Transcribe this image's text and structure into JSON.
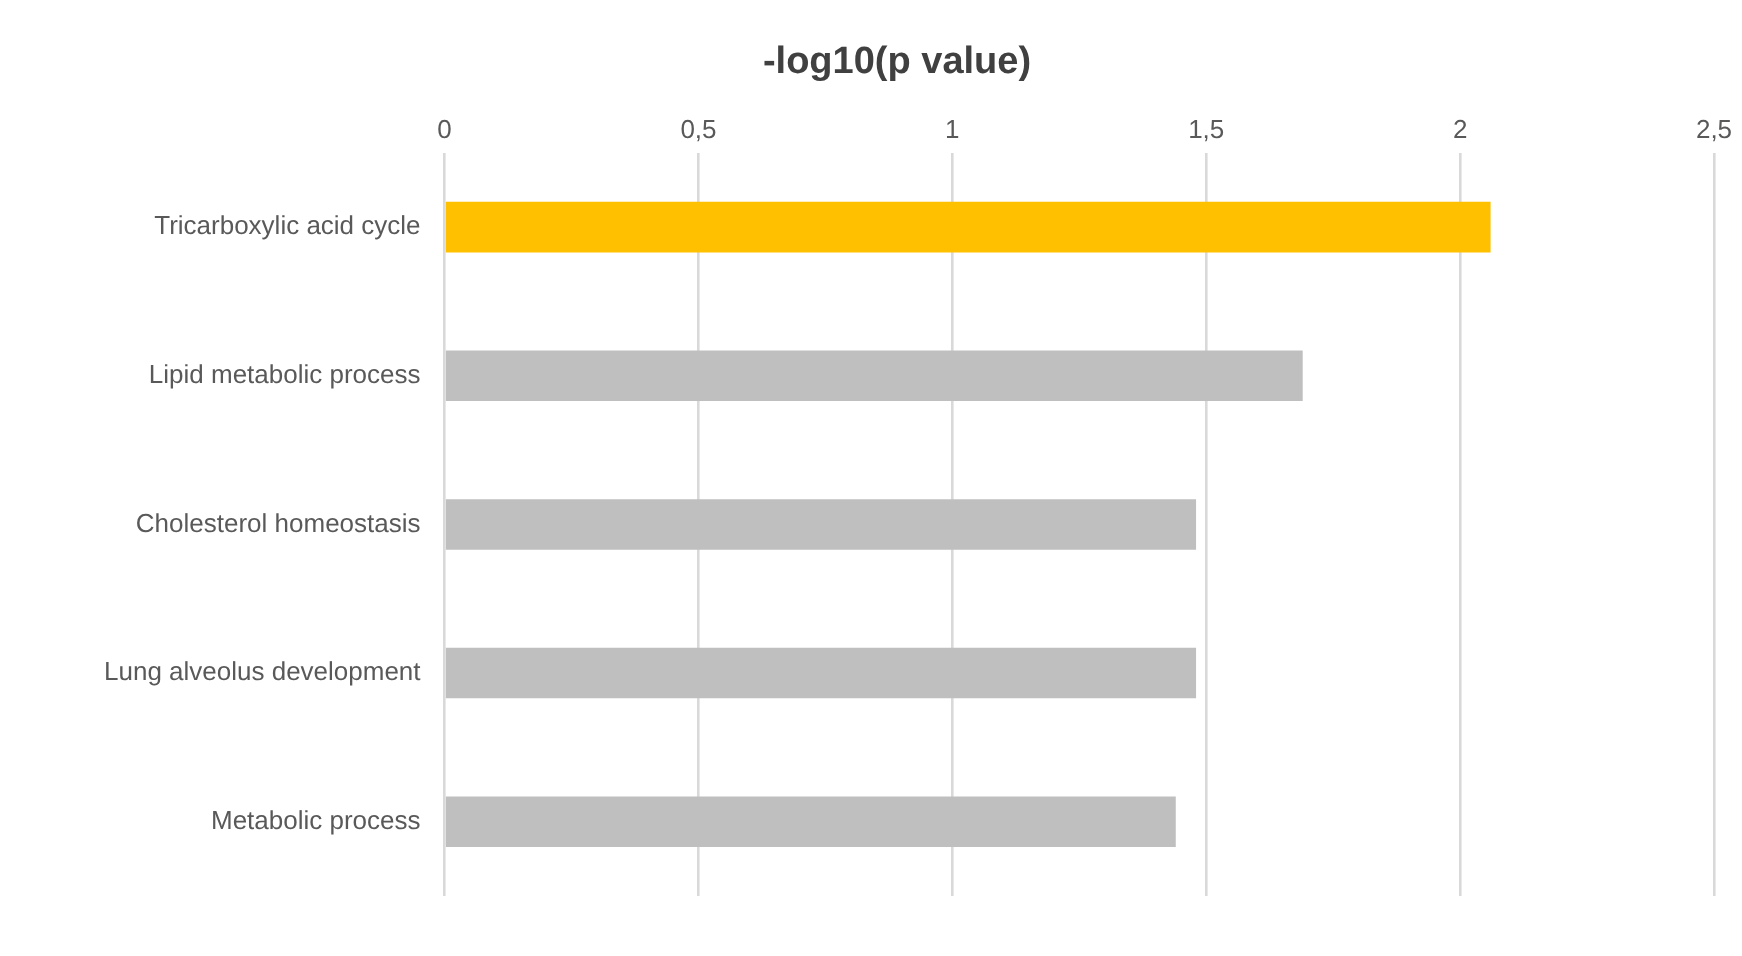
{
  "chart_data": {
    "type": "bar",
    "orientation": "horizontal",
    "title": "-log10(p value)",
    "categories": [
      "Tricarboxylic acid cycle",
      "Lipid metabolic process",
      "Cholesterol homeostasis",
      "Lung alveolus development",
      "Metabolic process"
    ],
    "values": [
      2.06,
      1.69,
      1.48,
      1.48,
      1.44
    ],
    "colors": [
      "#ffc000",
      "#bfbfbf",
      "#bfbfbf",
      "#bfbfbf",
      "#bfbfbf"
    ],
    "xlim": [
      0,
      2.5
    ],
    "xticks": [
      0,
      {
        "value": 0.5,
        "label": "0,5"
      },
      1,
      {
        "value": 1.5,
        "label": "1,5"
      },
      2,
      {
        "value": 2.5,
        "label": "2,5"
      }
    ],
    "grid": "x",
    "legend": false
  }
}
